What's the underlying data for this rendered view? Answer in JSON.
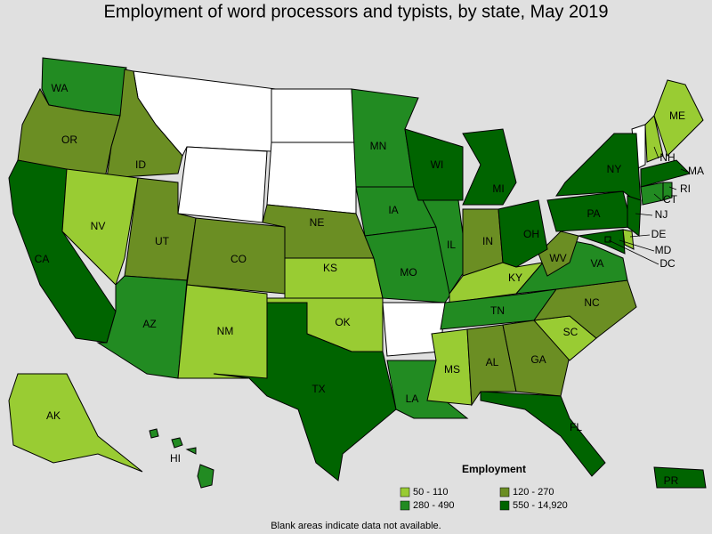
{
  "title": "Employment of word processors and typists, by state, May 2019",
  "legend": {
    "title": "Employment",
    "items": [
      {
        "label": "50 - 110",
        "color": "#99cc33"
      },
      {
        "label": "120 - 270",
        "color": "#6b8e23"
      },
      {
        "label": "280 - 490",
        "color": "#228b22"
      },
      {
        "label": "550 - 14,920",
        "color": "#006400"
      }
    ]
  },
  "note": "Blank areas indicate data not available.",
  "states": [
    {
      "label": "WA",
      "group": 2
    },
    {
      "label": "OR",
      "group": 1
    },
    {
      "label": "CA",
      "group": 3
    },
    {
      "label": "ID",
      "group": 1
    },
    {
      "label": "NV",
      "group": 0
    },
    {
      "label": "UT",
      "group": 1
    },
    {
      "label": "AZ",
      "group": 2
    },
    {
      "label": "CO",
      "group": 1
    },
    {
      "label": "NM",
      "group": 0
    },
    {
      "label": "NE",
      "group": 1
    },
    {
      "label": "KS",
      "group": 0
    },
    {
      "label": "OK",
      "group": 0
    },
    {
      "label": "TX",
      "group": 3
    },
    {
      "label": "MN",
      "group": 2
    },
    {
      "label": "IA",
      "group": 2
    },
    {
      "label": "MO",
      "group": 2
    },
    {
      "label": "LA",
      "group": 2
    },
    {
      "label": "WI",
      "group": 3
    },
    {
      "label": "IL",
      "group": 2
    },
    {
      "label": "MI",
      "group": 3
    },
    {
      "label": "IN",
      "group": 1
    },
    {
      "label": "KY",
      "group": 0
    },
    {
      "label": "TN",
      "group": 2
    },
    {
      "label": "MS",
      "group": 0
    },
    {
      "label": "AL",
      "group": 1
    },
    {
      "label": "GA",
      "group": 1
    },
    {
      "label": "FL",
      "group": 3
    },
    {
      "label": "SC",
      "group": 0
    },
    {
      "label": "NC",
      "group": 1
    },
    {
      "label": "VA",
      "group": 2
    },
    {
      "label": "WV",
      "group": 1
    },
    {
      "label": "OH",
      "group": 3
    },
    {
      "label": "PA",
      "group": 3
    },
    {
      "label": "NY",
      "group": 3
    },
    {
      "label": "NH",
      "group": 0
    },
    {
      "label": "ME",
      "group": 0
    },
    {
      "label": "MA",
      "group": 3
    },
    {
      "label": "RI",
      "group": 2
    },
    {
      "label": "CT",
      "group": 2
    },
    {
      "label": "NJ",
      "group": 3
    },
    {
      "label": "DE",
      "group": 0
    },
    {
      "label": "MD",
      "group": 3
    },
    {
      "label": "DC",
      "group": 3
    },
    {
      "label": "AK",
      "group": 0
    },
    {
      "label": "HI",
      "group": 2
    },
    {
      "label": "PR",
      "group": 3
    }
  ]
}
